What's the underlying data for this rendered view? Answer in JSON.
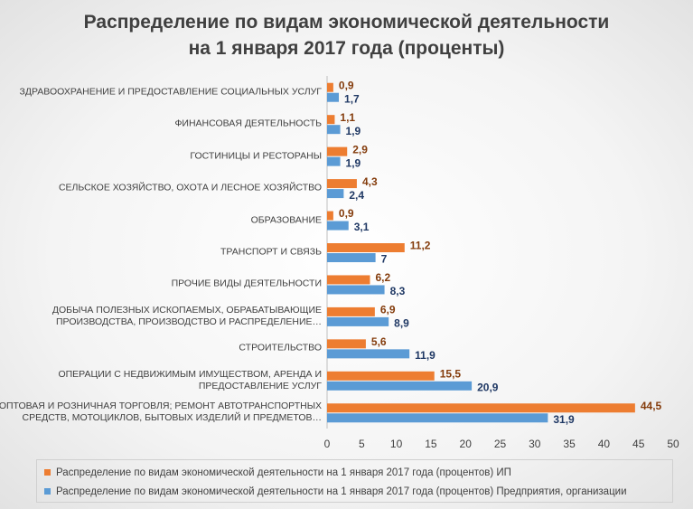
{
  "chart_data": {
    "type": "hbar",
    "title": "Распределение по видам экономической деятельности\nна 1 января 2017 года (проценты)",
    "categories": [
      "ЗДРАВООХРАНЕНИЕ И ПРЕДОСТАВЛЕНИЕ СОЦИАЛЬНЫХ УСЛУГ",
      "ФИНАНСОВАЯ ДЕЯТЕЛЬНОСТЬ",
      "ГОСТИНИЦЫ И РЕСТОРАНЫ",
      "СЕЛЬСКОЕ ХОЗЯЙСТВО, ОХОТА И ЛЕСНОЕ ХОЗЯЙСТВО",
      "ОБРАЗОВАНИЕ",
      "ТРАНСПОРТ И СВЯЗЬ",
      "ПРОЧИЕ ВИДЫ ДЕЯТЕЛЬНОСТИ",
      "ДОБЫЧА ПОЛЕЗНЫХ ИСКОПАЕМЫХ, ОБРАБАТЫВАЮЩИЕ\nПРОИЗВОДСТВА, ПРОИЗВОДСТВО И РАСПРЕДЕЛЕНИЕ…",
      "СТРОИТЕЛЬСТВО",
      "ОПЕРАЦИИ С НЕДВИЖИМЫМ ИМУЩЕСТВОМ, АРЕНДА И\nПРЕДОСТАВЛЕНИЕ УСЛУГ",
      "ОПТОВАЯ И РОЗНИЧНАЯ ТОРГОВЛЯ; РЕМОНТ АВТОТРАНСПОРТНЫХ\nСРЕДСТВ, МОТОЦИКЛОВ, БЫТОВЫХ ИЗДЕЛИЙ И ПРЕДМЕТОВ…"
    ],
    "series": [
      {
        "name": "Распределение по видам экономической деятельности на 1 января 2017 года (процентов) ИП",
        "color": "#ed7d31",
        "label_color": "#843c0c",
        "values": [
          0.9,
          1.1,
          2.9,
          4.3,
          0.9,
          11.2,
          6.2,
          6.9,
          5.6,
          15.5,
          44.5
        ],
        "value_labels": [
          "0,9",
          "1,1",
          "2,9",
          "4,3",
          "0,9",
          "11,2",
          "6,2",
          "6,9",
          "5,6",
          "15,5",
          "44,5"
        ]
      },
      {
        "name": "Распределение по видам экономической деятельности на 1 января 2017 года (процентов) Предприятия, организации",
        "color": "#5b9bd5",
        "label_color": "#1f3864",
        "values": [
          1.7,
          1.9,
          1.9,
          2.4,
          3.1,
          7,
          8.3,
          8.9,
          11.9,
          20.9,
          31.9
        ],
        "value_labels": [
          "1,7",
          "1,9",
          "1,9",
          "2,4",
          "3,1",
          "7",
          "8,3",
          "8,9",
          "11,9",
          "20,9",
          "31,9"
        ]
      }
    ],
    "xlim": [
      0,
      50
    ],
    "xticks": [
      0,
      5,
      10,
      15,
      20,
      25,
      30,
      35,
      40,
      45,
      50
    ],
    "legend": "bottom"
  }
}
